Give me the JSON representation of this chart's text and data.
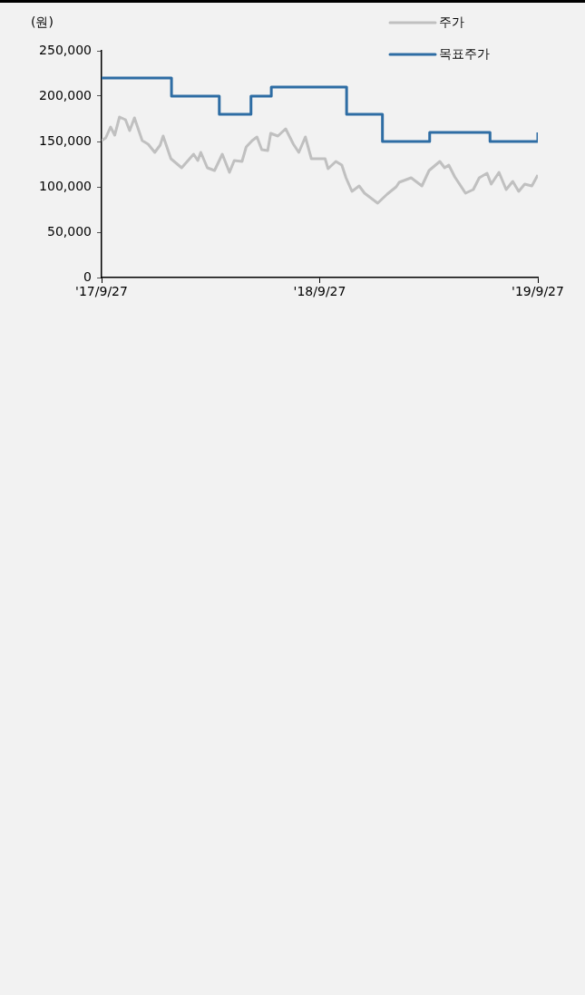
{
  "chart_data": {
    "type": "line",
    "ylabel": "(원)",
    "xlim": [
      "2017-09-27",
      "2019-09-27"
    ],
    "xticks": [
      {
        "value": "2017-09-27",
        "label": "'17/9/27"
      },
      {
        "value": "2018-09-27",
        "label": "'18/9/27"
      },
      {
        "value": "2019-09-27",
        "label": "'19/9/27"
      }
    ],
    "ylim": [
      0,
      250000
    ],
    "yticks": [
      {
        "value": 0,
        "label": "0"
      },
      {
        "value": 50000,
        "label": "50,000"
      },
      {
        "value": 100000,
        "label": "100,000"
      },
      {
        "value": 150000,
        "label": "150,000"
      },
      {
        "value": 200000,
        "label": "200,000"
      },
      {
        "value": 250000,
        "label": "250,000"
      }
    ],
    "grid": false,
    "legend": "top right",
    "series": [
      {
        "name": "주가",
        "type": "line",
        "color": "#c0c0c0",
        "x": [
          "2017-09-27",
          "2017-10-04",
          "2017-10-12",
          "2017-10-19",
          "2017-10-27",
          "2017-11-06",
          "2017-11-13",
          "2017-11-21",
          "2017-12-04",
          "2017-12-14",
          "2017-12-25",
          "2018-01-03",
          "2018-01-08",
          "2018-01-21",
          "2018-02-08",
          "2018-02-28",
          "2018-03-07",
          "2018-03-12",
          "2018-03-23",
          "2018-04-04",
          "2018-04-17",
          "2018-04-29",
          "2018-05-07",
          "2018-05-20",
          "2018-05-27",
          "2018-06-06",
          "2018-06-14",
          "2018-06-22",
          "2018-07-02",
          "2018-07-07",
          "2018-07-19",
          "2018-08-01",
          "2018-08-14",
          "2018-08-23",
          "2018-09-03",
          "2018-09-13",
          "2018-10-06",
          "2018-10-11",
          "2018-10-24",
          "2018-11-03",
          "2018-11-10",
          "2018-11-20",
          "2018-12-02",
          "2018-12-11",
          "2019-01-02",
          "2019-01-18",
          "2019-02-02",
          "2019-02-07",
          "2019-02-27",
          "2019-03-17",
          "2019-03-29",
          "2019-04-16",
          "2019-04-24",
          "2019-05-01",
          "2019-05-11",
          "2019-05-29",
          "2019-06-11",
          "2019-06-21",
          "2019-07-04",
          "2019-07-11",
          "2019-07-24",
          "2019-08-05",
          "2019-08-16",
          "2019-08-26",
          "2019-09-05",
          "2019-09-17",
          "2019-09-27"
        ],
        "values": [
          151000,
          154000,
          166000,
          157000,
          177000,
          174000,
          162000,
          176000,
          151000,
          147000,
          138000,
          146000,
          156000,
          131000,
          121000,
          136000,
          129000,
          138000,
          121000,
          118000,
          136000,
          116000,
          129000,
          128000,
          144000,
          151000,
          155000,
          141000,
          140000,
          159000,
          156000,
          164000,
          147000,
          138000,
          155000,
          131000,
          131000,
          120000,
          128000,
          124000,
          110000,
          95000,
          101000,
          93000,
          82000,
          92000,
          100000,
          105000,
          110000,
          101000,
          118000,
          128000,
          121000,
          124000,
          111000,
          93000,
          97000,
          110000,
          115000,
          103000,
          116000,
          97000,
          106000,
          95000,
          103000,
          101000,
          113000
        ]
      },
      {
        "name": "목표주가",
        "type": "step",
        "color": "#2e6da4",
        "x": [
          "2017-09-27",
          "2018-01-22",
          "2018-04-12",
          "2018-06-04",
          "2018-07-08",
          "2018-11-11",
          "2019-01-10",
          "2019-03-30",
          "2019-07-09",
          "2019-09-26",
          "2019-09-27"
        ],
        "values": [
          220000,
          200000,
          180000,
          200000,
          210000,
          180000,
          150000,
          160000,
          150000,
          150000,
          160000
        ]
      }
    ]
  }
}
